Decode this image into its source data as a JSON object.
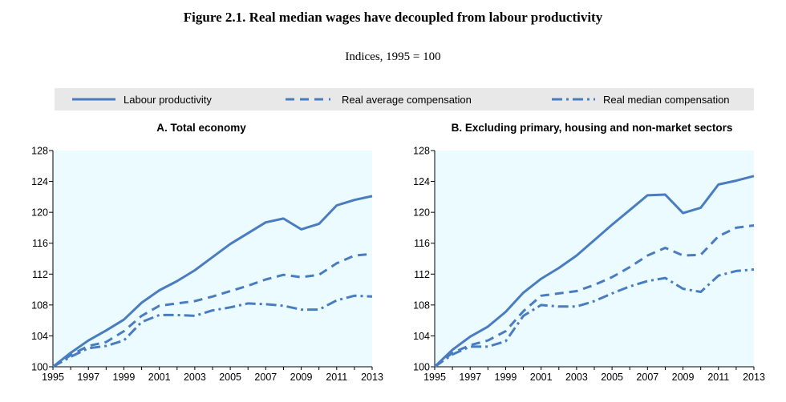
{
  "title": "Figure 2.1. Real median wages have decoupled from labour productivity",
  "subtitle": "Indices, 1995 = 100",
  "colors": {
    "series": "#4a7cc0",
    "plot_bg": "#ebfbff",
    "legend_bg": "#e8e8e8"
  },
  "legend": [
    {
      "label": "Labour productivity",
      "style": "solid"
    },
    {
      "label": "Real average compensation",
      "style": "dashed"
    },
    {
      "label": "Real median compensation",
      "style": "dash-dot"
    }
  ],
  "chart_data": [
    {
      "type": "line",
      "title": "A. Total economy",
      "x": [
        1995,
        1996,
        1997,
        1998,
        1999,
        2000,
        2001,
        2002,
        2003,
        2004,
        2005,
        2006,
        2007,
        2008,
        2009,
        2010,
        2011,
        2012,
        2013
      ],
      "x_ticks": [
        "1995",
        "1997",
        "1999",
        "2001",
        "2003",
        "2005",
        "2007",
        "2009",
        "2011",
        "2013"
      ],
      "y_ticks": [
        "100",
        "104",
        "108",
        "112",
        "116",
        "120",
        "124",
        "128"
      ],
      "ylim": [
        100,
        128
      ],
      "grid": false,
      "series": [
        {
          "name": "Labour productivity",
          "values": [
            100,
            101.8,
            103.4,
            104.7,
            106.1,
            108.3,
            109.9,
            111.1,
            112.5,
            114.2,
            115.9,
            117.3,
            118.7,
            119.2,
            117.8,
            118.5,
            120.9,
            121.6,
            122.1
          ]
        },
        {
          "name": "Real average compensation",
          "values": [
            100,
            101.5,
            102.7,
            103.2,
            104.6,
            106.6,
            107.9,
            108.2,
            108.5,
            109.1,
            109.8,
            110.5,
            111.3,
            111.9,
            111.6,
            111.9,
            113.4,
            114.4,
            114.6
          ]
        },
        {
          "name": "Real median compensation",
          "values": [
            100,
            101.3,
            102.4,
            102.7,
            103.4,
            105.8,
            106.7,
            106.7,
            106.6,
            107.3,
            107.7,
            108.2,
            108.1,
            107.9,
            107.4,
            107.4,
            108.6,
            109.2,
            109.1
          ]
        }
      ]
    },
    {
      "type": "line",
      "title": "B. Excluding primary, housing and non-market sectors",
      "x": [
        1995,
        1996,
        1997,
        1998,
        1999,
        2000,
        2001,
        2002,
        2003,
        2004,
        2005,
        2006,
        2007,
        2008,
        2009,
        2010,
        2011,
        2012,
        2013
      ],
      "x_ticks": [
        "1995",
        "1997",
        "1999",
        "2001",
        "2003",
        "2005",
        "2007",
        "2009",
        "2011",
        "2013"
      ],
      "y_ticks": [
        "100",
        "104",
        "108",
        "112",
        "116",
        "120",
        "124",
        "128"
      ],
      "ylim": [
        100,
        128
      ],
      "grid": false,
      "series": [
        {
          "name": "Labour productivity",
          "values": [
            100,
            102.2,
            103.9,
            105.2,
            107.1,
            109.6,
            111.4,
            112.8,
            114.4,
            116.4,
            118.4,
            120.3,
            122.2,
            122.3,
            119.9,
            120.6,
            123.6,
            124.1,
            124.7
          ]
        },
        {
          "name": "Real average compensation",
          "values": [
            100,
            101.8,
            102.8,
            103.4,
            104.6,
            107.2,
            109.2,
            109.5,
            109.8,
            110.6,
            111.6,
            112.9,
            114.4,
            115.4,
            114.4,
            114.5,
            116.9,
            118.0,
            118.3
          ]
        },
        {
          "name": "Real median compensation",
          "values": [
            100,
            101.6,
            102.6,
            102.6,
            103.3,
            106.6,
            108.0,
            107.8,
            107.8,
            108.5,
            109.5,
            110.4,
            111.1,
            111.5,
            110.1,
            109.7,
            111.8,
            112.4,
            112.6
          ]
        }
      ]
    }
  ]
}
